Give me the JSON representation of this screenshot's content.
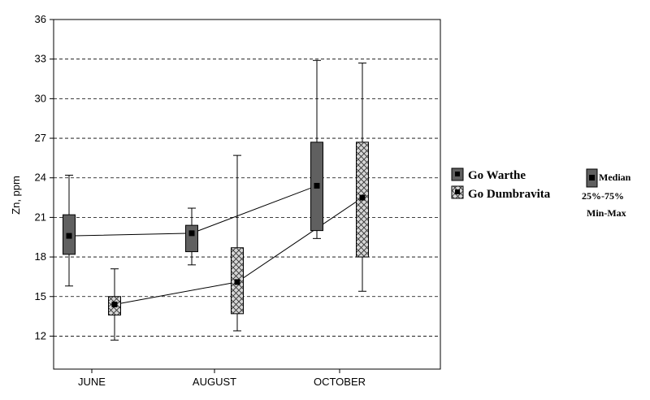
{
  "chart_data": {
    "type": "box",
    "title": "",
    "xlabel": "",
    "ylabel": "Zn, ppm",
    "categories": [
      "JUNE",
      "AUGUST",
      "OCTOBER"
    ],
    "ylim": [
      9.5,
      36
    ],
    "yticks": [
      12,
      15,
      18,
      21,
      24,
      27,
      30,
      33,
      36
    ],
    "grid": "horizontal-dashed",
    "legend_position": "right",
    "series": [
      {
        "name": "Go Warthe",
        "fill": "#606060",
        "pattern": "solid",
        "boxes": [
          {
            "category": "JUNE",
            "min": 15.8,
            "q1": 18.2,
            "median": 19.6,
            "q3": 21.2,
            "max": 24.2
          },
          {
            "category": "AUGUST",
            "min": 17.4,
            "q1": 18.4,
            "median": 19.8,
            "q3": 20.4,
            "max": 21.7
          },
          {
            "category": "OCTOBER",
            "min": 19.4,
            "q1": 20.0,
            "median": 23.4,
            "q3": 26.7,
            "max": 32.9
          }
        ]
      },
      {
        "name": "Go Dumbravita",
        "fill": "#c8c8c8",
        "pattern": "crosshatch",
        "boxes": [
          {
            "category": "JUNE",
            "min": 11.7,
            "q1": 13.6,
            "median": 14.4,
            "q3": 15.0,
            "max": 17.1
          },
          {
            "category": "AUGUST",
            "min": 12.4,
            "q1": 13.7,
            "median": 16.1,
            "q3": 18.7,
            "max": 25.7
          },
          {
            "category": "OCTOBER",
            "min": 15.4,
            "q1": 18.0,
            "median": 22.5,
            "q3": 26.7,
            "max": 32.7
          }
        ]
      }
    ],
    "key": {
      "median": "Median",
      "box": "25%-75%",
      "whisker": "Min-Max"
    }
  }
}
